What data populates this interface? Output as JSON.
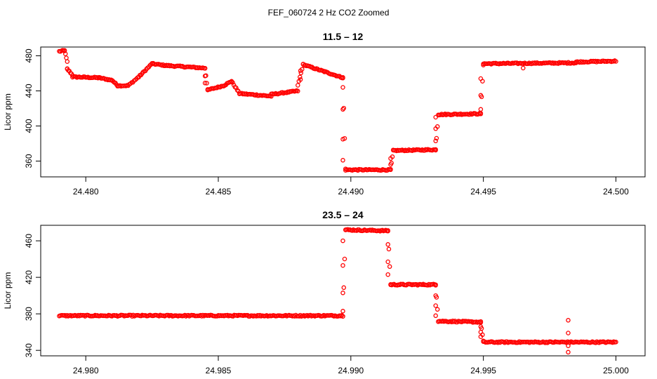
{
  "figure": {
    "title": "FEF_060724  2 Hz CO2 Zoomed"
  },
  "colors": {
    "points": "#ff0000",
    "frame": "#000000"
  },
  "chart_data": [
    {
      "type": "scatter",
      "title": "11.5 – 12",
      "xlabel": "",
      "ylabel": "Licor ppm",
      "xlim": [
        24.4783,
        24.5011
      ],
      "ylim": [
        342,
        490
      ],
      "xticks": [
        24.48,
        24.485,
        24.49,
        24.495,
        24.5
      ],
      "xtick_labels": [
        "24.480",
        "24.485",
        "24.490",
        "24.495",
        "24.500"
      ],
      "yticks": [
        360,
        400,
        440,
        480
      ],
      "ytick_labels": [
        "360",
        "400",
        "440",
        "480"
      ],
      "marker": "open-circle",
      "segments": [
        {
          "x": [
            24.479,
            24.4792
          ],
          "y": [
            485,
            486
          ]
        },
        {
          "x": [
            24.4792,
            24.4793
          ],
          "y": [
            486,
            473
          ]
        },
        {
          "x": [
            24.4793,
            24.4795
          ],
          "y": [
            465,
            458
          ]
        },
        {
          "x": [
            24.4795,
            24.4805
          ],
          "y": [
            456,
            455
          ]
        },
        {
          "x": [
            24.4805,
            24.481
          ],
          "y": [
            455,
            452
          ]
        },
        {
          "x": [
            24.481,
            24.4812
          ],
          "y": [
            452,
            446
          ]
        },
        {
          "x": [
            24.4812,
            24.4816
          ],
          "y": [
            446,
            446
          ]
        },
        {
          "x": [
            24.4816,
            24.482
          ],
          "y": [
            446,
            456
          ]
        },
        {
          "x": [
            24.482,
            24.4825
          ],
          "y": [
            456,
            471
          ]
        },
        {
          "x": [
            24.4825,
            24.483
          ],
          "y": [
            471,
            469
          ]
        },
        {
          "x": [
            24.483,
            24.4845
          ],
          "y": [
            469,
            466
          ]
        },
        {
          "x": [
            24.4845,
            24.4846
          ],
          "y": [
            466,
            441
          ]
        },
        {
          "x": [
            24.4846,
            24.4852
          ],
          "y": [
            441,
            446
          ]
        },
        {
          "x": [
            24.4852,
            24.4855
          ],
          "y": [
            446,
            451
          ]
        },
        {
          "x": [
            24.4855,
            24.4858
          ],
          "y": [
            451,
            437
          ]
        },
        {
          "x": [
            24.4858,
            24.487
          ],
          "y": [
            437,
            434
          ]
        },
        {
          "x": [
            24.487,
            24.488
          ],
          "y": [
            436,
            440
          ]
        },
        {
          "x": [
            24.488,
            24.4882
          ],
          "y": [
            446,
            470
          ]
        },
        {
          "x": [
            24.4882,
            24.489
          ],
          "y": [
            470,
            462
          ]
        },
        {
          "x": [
            24.489,
            24.4897
          ],
          "y": [
            462,
            455
          ]
        },
        {
          "x": [
            24.4897,
            24.4898
          ],
          "y": [
            455,
            351
          ]
        },
        {
          "x": [
            24.4898,
            24.4915
          ],
          "y": [
            350,
            350
          ]
        },
        {
          "x": [
            24.4915,
            24.4916
          ],
          "y": [
            350,
            372
          ]
        },
        {
          "x": [
            24.4916,
            24.4932
          ],
          "y": [
            372,
            373
          ]
        },
        {
          "x": [
            24.4932,
            24.4933
          ],
          "y": [
            373,
            413
          ]
        },
        {
          "x": [
            24.4933,
            24.4949
          ],
          "y": [
            413,
            414
          ]
        },
        {
          "x": [
            24.4949,
            24.495
          ],
          "y": [
            414,
            470
          ]
        },
        {
          "x": [
            24.495,
            24.4985
          ],
          "y": [
            471,
            472
          ]
        },
        {
          "x": [
            24.4985,
            24.5
          ],
          "y": [
            473,
            474
          ]
        }
      ],
      "outliers": [
        {
          "x": 24.4793,
          "y": 465
        },
        {
          "x": 24.4845,
          "y": 449
        },
        {
          "x": 24.4845,
          "y": 457
        },
        {
          "x": 24.4881,
          "y": 453
        },
        {
          "x": 24.4881,
          "y": 463
        },
        {
          "x": 24.4897,
          "y": 444
        },
        {
          "x": 24.4897,
          "y": 419
        },
        {
          "x": 24.4897,
          "y": 385
        },
        {
          "x": 24.4897,
          "y": 361
        },
        {
          "x": 24.4915,
          "y": 356
        },
        {
          "x": 24.4915,
          "y": 363
        },
        {
          "x": 24.4932,
          "y": 383
        },
        {
          "x": 24.4932,
          "y": 397
        },
        {
          "x": 24.4932,
          "y": 410
        },
        {
          "x": 24.4949,
          "y": 419
        },
        {
          "x": 24.4949,
          "y": 435
        },
        {
          "x": 24.4949,
          "y": 454
        },
        {
          "x": 24.4965,
          "y": 466
        }
      ]
    },
    {
      "type": "scatter",
      "title": "23.5 – 24",
      "xlabel": "",
      "ylabel": "Licor ppm",
      "xlim": [
        24.9783,
        25.0011
      ],
      "ylim": [
        334,
        477
      ],
      "xticks": [
        24.98,
        24.985,
        24.99,
        24.995,
        25.0
      ],
      "xtick_labels": [
        "24.980",
        "24.985",
        "24.990",
        "24.995",
        "25.000"
      ],
      "yticks": [
        340,
        380,
        420,
        460
      ],
      "ytick_labels": [
        "340",
        "380",
        "420",
        "460"
      ],
      "marker": "open-circle",
      "segments": [
        {
          "x": [
            24.979,
            24.9897
          ],
          "y": [
            378,
            378
          ]
        },
        {
          "x": [
            24.9897,
            24.9898
          ],
          "y": [
            378,
            472
          ]
        },
        {
          "x": [
            24.9898,
            24.9914
          ],
          "y": [
            472,
            471
          ]
        },
        {
          "x": [
            24.9914,
            24.9915
          ],
          "y": [
            471,
            412
          ]
        },
        {
          "x": [
            24.9915,
            24.9932
          ],
          "y": [
            412,
            412
          ]
        },
        {
          "x": [
            24.9932,
            24.9933
          ],
          "y": [
            412,
            372
          ]
        },
        {
          "x": [
            24.9933,
            24.9949
          ],
          "y": [
            372,
            371
          ]
        },
        {
          "x": [
            24.9949,
            24.995
          ],
          "y": [
            371,
            350
          ]
        },
        {
          "x": [
            24.995,
            25.0
          ],
          "y": [
            349,
            349
          ]
        }
      ],
      "outliers": [
        {
          "x": 24.9897,
          "y": 383
        },
        {
          "x": 24.9897,
          "y": 403
        },
        {
          "x": 24.9897,
          "y": 433
        },
        {
          "x": 24.9897,
          "y": 460
        },
        {
          "x": 24.9914,
          "y": 456
        },
        {
          "x": 24.9914,
          "y": 437
        },
        {
          "x": 24.9914,
          "y": 423
        },
        {
          "x": 24.9932,
          "y": 400
        },
        {
          "x": 24.9932,
          "y": 389
        },
        {
          "x": 24.9932,
          "y": 378
        },
        {
          "x": 24.9949,
          "y": 366
        },
        {
          "x": 24.9949,
          "y": 360
        },
        {
          "x": 24.9949,
          "y": 355
        },
        {
          "x": 24.9982,
          "y": 373
        },
        {
          "x": 24.9982,
          "y": 359
        },
        {
          "x": 24.9982,
          "y": 345
        },
        {
          "x": 24.9982,
          "y": 338
        }
      ]
    }
  ]
}
